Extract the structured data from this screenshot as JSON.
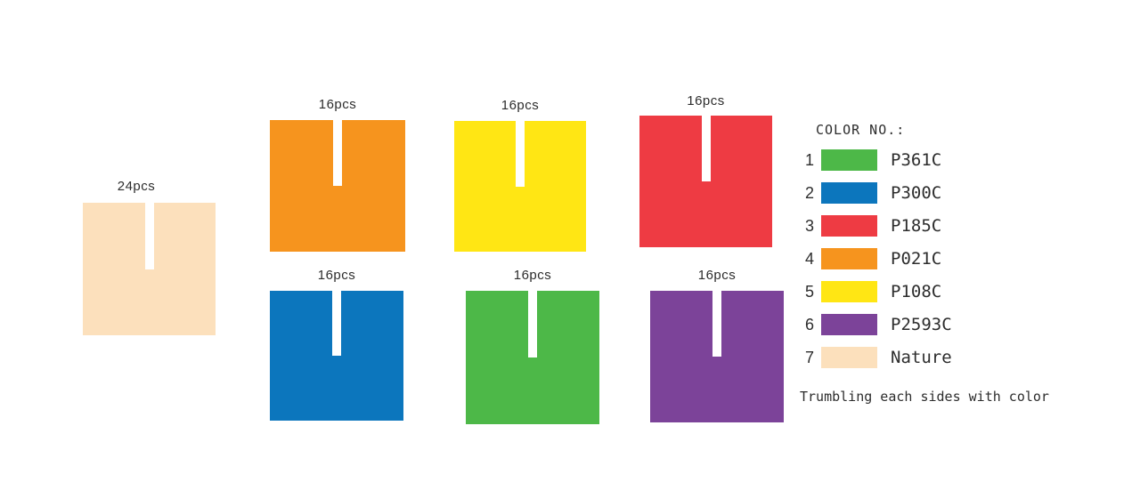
{
  "pieces": [
    {
      "name": "nature",
      "label": "24pcs",
      "color": "#FCE0BC"
    },
    {
      "name": "orange",
      "label": "16pcs",
      "color": "#F6941E"
    },
    {
      "name": "yellow",
      "label": "16pcs",
      "color": "#FFE614"
    },
    {
      "name": "red",
      "label": "16pcs",
      "color": "#EE3B43"
    },
    {
      "name": "blue",
      "label": "16pcs",
      "color": "#0C76BD"
    },
    {
      "name": "green",
      "label": "16pcs",
      "color": "#4DB848"
    },
    {
      "name": "purple",
      "label": "16pcs",
      "color": "#7C4399"
    }
  ],
  "legend": {
    "title": "COLOR NO.:",
    "rows": [
      {
        "num": "1",
        "color": "#4DB848",
        "label": "P361C"
      },
      {
        "num": "2",
        "color": "#0C76BD",
        "label": "P300C"
      },
      {
        "num": "3",
        "color": "#EE3B43",
        "label": "P185C"
      },
      {
        "num": "4",
        "color": "#F6941E",
        "label": "P021C"
      },
      {
        "num": "5",
        "color": "#FFE614",
        "label": "P108C"
      },
      {
        "num": "6",
        "color": "#7C4399",
        "label": "P2593C"
      },
      {
        "num": "7",
        "color": "#FCE0BC",
        "label": "Nature"
      }
    ],
    "footer": "Trumbling each sides with color"
  }
}
